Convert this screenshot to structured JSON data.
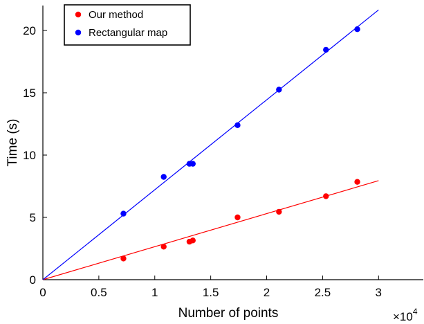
{
  "chart_data": {
    "type": "scatter",
    "xlabel": "Number of points",
    "ylabel": "Time (s)",
    "x_exponent_label": "×10",
    "x_exponent_power": "4",
    "xlim": [
      0,
      3.4
    ],
    "ylim": [
      0,
      22
    ],
    "xticks": [
      0,
      0.5,
      1,
      1.5,
      2,
      2.5,
      3
    ],
    "xtick_labels": [
      "0",
      "0.5",
      "1",
      "1.5",
      "2",
      "2.5",
      "3"
    ],
    "yticks": [
      0,
      5,
      10,
      15,
      20
    ],
    "ytick_labels": [
      "0",
      "5",
      "10",
      "15",
      "20"
    ],
    "grid": false,
    "legend_position": "top-left",
    "series": [
      {
        "name": "Our method",
        "color": "#ff0000",
        "x": [
          0.72,
          1.08,
          1.31,
          1.34,
          1.74,
          2.11,
          2.53,
          2.81
        ],
        "y": [
          1.7,
          2.65,
          3.05,
          3.15,
          5.0,
          5.45,
          6.7,
          7.85
        ],
        "fit_line": {
          "x": [
            0,
            3.0
          ],
          "y": [
            0,
            7.95
          ]
        }
      },
      {
        "name": "Rectangular map",
        "color": "#0000ff",
        "x": [
          0.72,
          1.08,
          1.31,
          1.34,
          1.74,
          2.11,
          2.53,
          2.81
        ],
        "y": [
          5.3,
          8.25,
          9.3,
          9.3,
          12.4,
          15.25,
          18.45,
          20.1
        ],
        "fit_line": {
          "x": [
            0,
            3.0
          ],
          "y": [
            0,
            21.65
          ]
        }
      }
    ]
  }
}
